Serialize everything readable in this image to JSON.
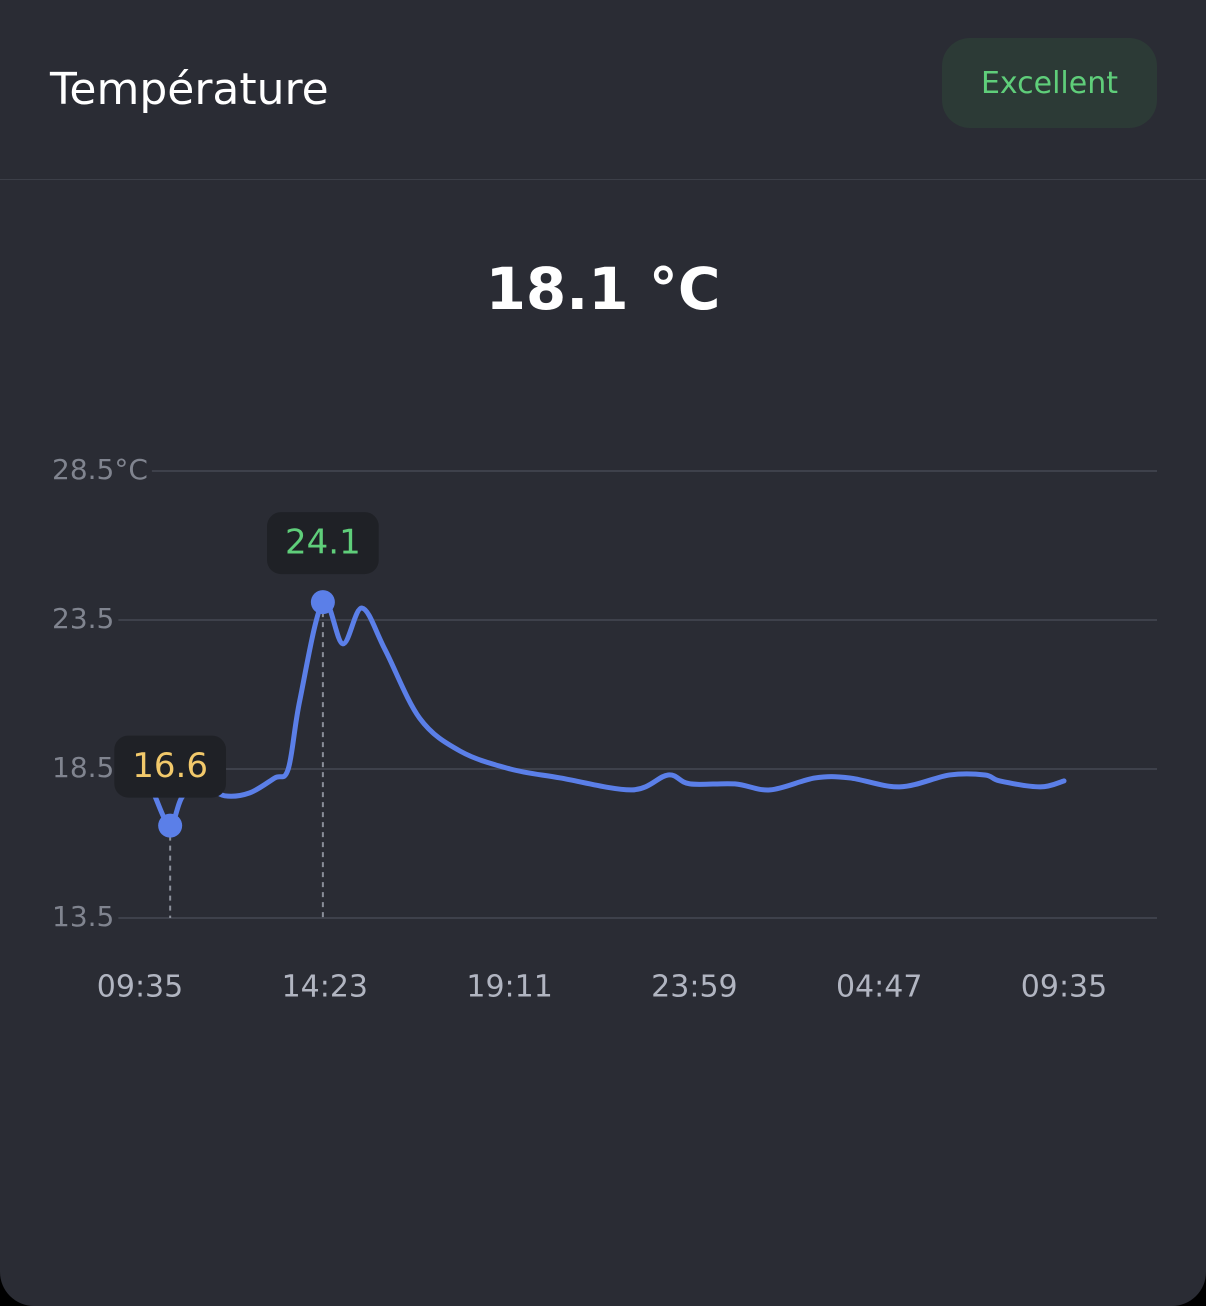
{
  "header": {
    "title": "Température",
    "badge": "Excellent"
  },
  "current": "18.1 °C",
  "chart_data": {
    "type": "line",
    "x": [
      23,
      47,
      67,
      101,
      132,
      171,
      210,
      231,
      249,
      285,
      316,
      346,
      382,
      436,
      499,
      577,
      655,
      767,
      823,
      857,
      927,
      982,
      1052,
      1106,
      1184,
      1262,
      1317,
      1340,
      1403,
      1440
    ],
    "series": [
      {
        "name": "Température",
        "color": "#5b7fe8",
        "values": [
          17.6,
          16.6,
          17.6,
          17.9,
          17.6,
          17.7,
          18.2,
          18.5,
          20.8,
          24.1,
          22.7,
          23.9,
          22.5,
          20.2,
          19.1,
          18.5,
          18.2,
          17.8,
          18.3,
          18.0,
          18.0,
          17.8,
          18.2,
          18.2,
          17.9,
          18.3,
          18.3,
          18.1,
          17.9,
          18.1
        ]
      }
    ],
    "xlim": [
      0,
      1440
    ],
    "xticks": [
      {
        "value": 0,
        "label": "09:35"
      },
      {
        "value": 288,
        "label": "14:23"
      },
      {
        "value": 576,
        "label": "19:11"
      },
      {
        "value": 864,
        "label": "23:59"
      },
      {
        "value": 1152,
        "label": "04:47"
      },
      {
        "value": 1440,
        "label": "09:35"
      }
    ],
    "ylim": [
      13.5,
      28.5
    ],
    "yticks": [
      13.5,
      18.5,
      23.5,
      {
        "value": 28.5,
        "label": "28.5°C"
      }
    ],
    "grid": true,
    "min_color": "#f2c96b",
    "max_color": "#5fce7a"
  }
}
